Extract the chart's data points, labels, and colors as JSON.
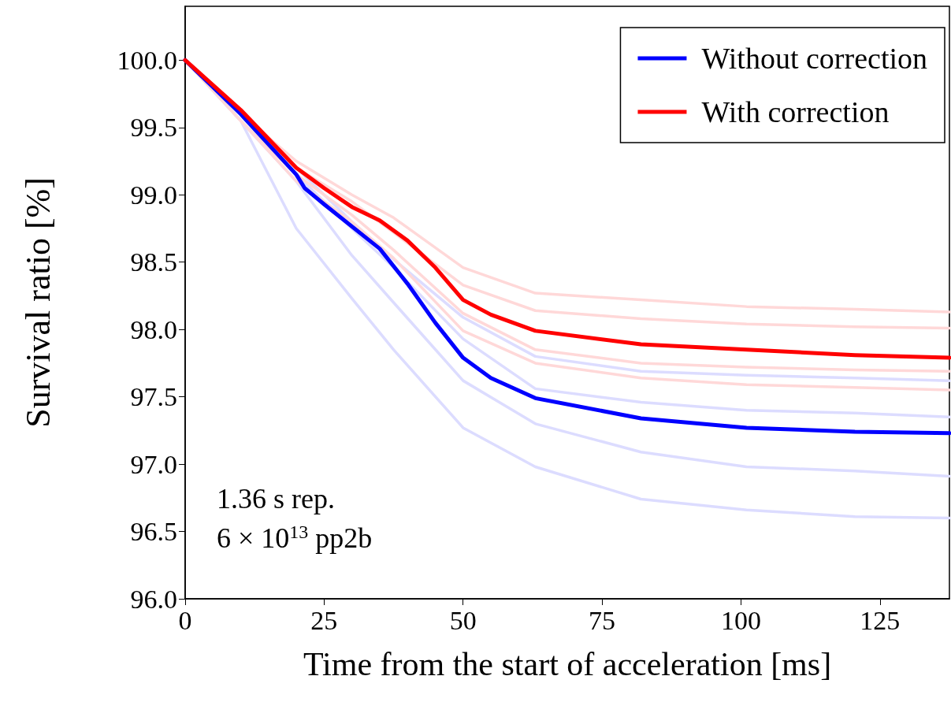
{
  "chart_data": {
    "type": "line",
    "xlabel": "Time from the start of acceleration [ms]",
    "ylabel": "Survival ratio [%]",
    "annotations": [
      "1.36 s rep.",
      "6 × 10$^{13}$ pp2b"
    ],
    "x": [
      0,
      10,
      20,
      30,
      37.5,
      50,
      63,
      82,
      101,
      120.5,
      137.5
    ],
    "series": [
      {
        "color": "#dcdcff",
        "values": [
          100,
          99.55,
          99.1,
          98.55,
          98.2,
          97.62,
          97.3,
          97.09,
          96.98,
          96.95,
          96.91
        ]
      },
      {
        "color": "#dcdcff",
        "values": [
          100,
          99.55,
          98.75,
          98.23,
          97.85,
          97.27,
          96.98,
          96.74,
          96.66,
          96.61,
          96.6
        ]
      },
      {
        "color": "#dcdcff",
        "values": [
          100,
          99.6,
          99.15,
          98.75,
          98.46,
          97.93,
          97.56,
          97.46,
          97.4,
          97.38,
          97.35
        ]
      },
      {
        "color": "#dcdcff",
        "values": [
          100,
          99.6,
          99.2,
          98.8,
          98.52,
          98.09,
          97.8,
          97.69,
          97.66,
          97.64,
          97.62
        ]
      },
      {
        "color": "#ffd8d8",
        "values": [
          100,
          99.6,
          99.25,
          99.0,
          98.83,
          98.46,
          98.27,
          98.22,
          98.17,
          98.15,
          98.13
        ]
      },
      {
        "color": "#ffd8d8",
        "values": [
          100,
          99.6,
          99.2,
          98.95,
          98.72,
          98.33,
          98.14,
          98.08,
          98.04,
          98.02,
          98.01
        ]
      },
      {
        "color": "#ffd8d8",
        "values": [
          100,
          99.55,
          99.15,
          98.85,
          98.59,
          98.12,
          97.85,
          97.75,
          97.72,
          97.7,
          97.69
        ]
      },
      {
        "color": "#ffd8d8",
        "values": [
          100,
          99.55,
          99.1,
          98.8,
          98.53,
          97.99,
          97.75,
          97.64,
          97.59,
          97.57,
          97.55
        ]
      },
      {
        "name": "Without correction",
        "color": "#0000ff",
        "x": [
          0,
          10,
          20,
          21.5,
          25,
          35,
          40,
          45,
          50,
          55,
          63,
          82,
          101,
          120.5,
          137.5
        ],
        "values": [
          100,
          99.6,
          99.15,
          99.05,
          98.93,
          98.6,
          98.34,
          98.05,
          97.79,
          97.64,
          97.49,
          97.34,
          97.27,
          97.24,
          97.23
        ]
      },
      {
        "name": "With correction",
        "color": "#ff0000",
        "x": [
          0,
          10,
          20,
          25,
          30,
          35,
          40,
          45,
          50,
          55,
          63,
          82,
          101,
          120.5,
          137.5
        ],
        "values": [
          100,
          99.63,
          99.2,
          99.05,
          98.91,
          98.81,
          98.66,
          98.46,
          98.22,
          98.11,
          97.99,
          97.89,
          97.85,
          97.81,
          97.79
        ]
      }
    ],
    "xlim": [
      0,
      137.5
    ],
    "xticks": [
      0,
      25,
      50,
      75,
      100,
      125
    ],
    "ylim": [
      96,
      100.4
    ],
    "yticks": [
      {
        "value": 96,
        "label": "96.0"
      },
      {
        "value": 96.5,
        "label": "96.5"
      },
      {
        "value": 97,
        "label": "97.0"
      },
      {
        "value": 97.5,
        "label": "97.5"
      },
      {
        "value": 98,
        "label": "98.0"
      },
      {
        "value": 98.5,
        "label": "98.5"
      },
      {
        "value": 99,
        "label": "99.0"
      },
      {
        "value": 99.5,
        "label": "99.5"
      },
      {
        "value": 100,
        "label": "100.0"
      }
    ],
    "grid": false,
    "legend": "top right",
    "marker": "none",
    "line_style": "solid"
  }
}
